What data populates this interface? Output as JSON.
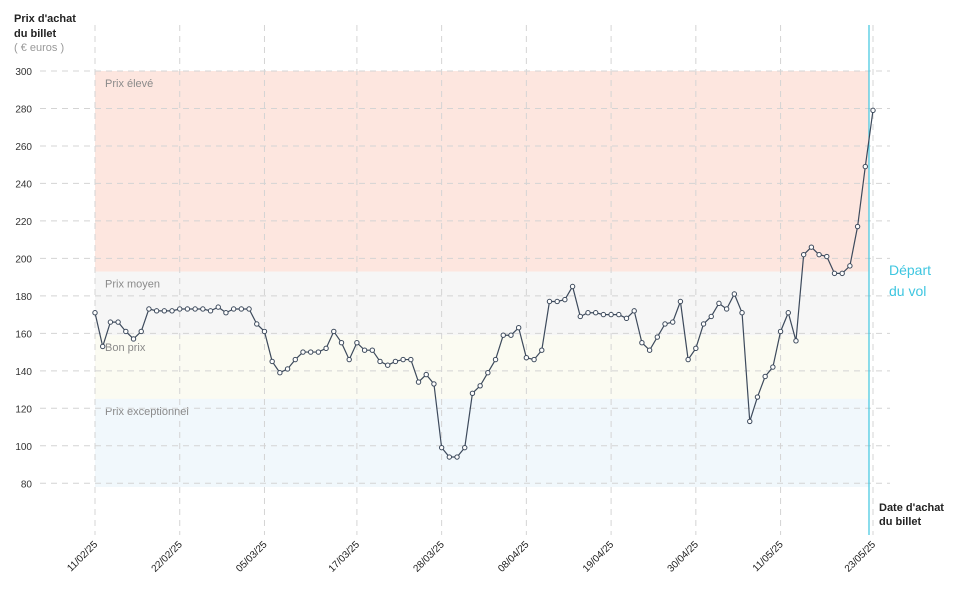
{
  "chart_data": {
    "type": "line",
    "y_title": [
      "Prix d'achat",
      "du billet"
    ],
    "y_unit": "( € euros )",
    "x_title": [
      "Date d'achat",
      "du billet"
    ],
    "annotation": [
      "Départ",
      "du vol"
    ],
    "categories": [
      "11/02/25",
      null,
      null,
      null,
      null,
      null,
      null,
      null,
      null,
      null,
      null,
      "22/02/25",
      null,
      null,
      null,
      null,
      null,
      null,
      null,
      null,
      null,
      null,
      "05/03/25",
      null,
      null,
      null,
      null,
      null,
      null,
      null,
      null,
      null,
      null,
      null,
      "17/03/25",
      null,
      null,
      null,
      null,
      null,
      null,
      null,
      null,
      null,
      null,
      "28/03/25",
      null,
      null,
      null,
      null,
      null,
      null,
      null,
      null,
      null,
      null,
      "08/04/25",
      null,
      null,
      null,
      null,
      null,
      null,
      null,
      null,
      null,
      null,
      "19/04/25",
      null,
      null,
      null,
      null,
      null,
      null,
      null,
      null,
      null,
      null,
      "30/04/25",
      null,
      null,
      null,
      null,
      null,
      null,
      null,
      null,
      null,
      null,
      "11/05/25",
      null,
      null,
      null,
      null,
      null,
      null,
      null,
      null,
      null,
      null,
      null,
      "23/05/25"
    ],
    "values": [
      171,
      153,
      166,
      166,
      161,
      157,
      161,
      173,
      172,
      172,
      172,
      173,
      173,
      173,
      173,
      172,
      174,
      171,
      173,
      173,
      173,
      165,
      161,
      145,
      139,
      141,
      146,
      150,
      150,
      150,
      152,
      161,
      155,
      146,
      155,
      151,
      151,
      145,
      143,
      145,
      146,
      146,
      134,
      138,
      133,
      99,
      94,
      94,
      99,
      128,
      132,
      139,
      146,
      159,
      159,
      163,
      147,
      146,
      151,
      177,
      177,
      178,
      185,
      169,
      171,
      171,
      170,
      170,
      170,
      168,
      172,
      155,
      151,
      158,
      165,
      166,
      177,
      146,
      152,
      165,
      169,
      176,
      173,
      181,
      171,
      113,
      126,
      137,
      142,
      161,
      171,
      156,
      202,
      206,
      202,
      201,
      192,
      192,
      196,
      217,
      249,
      279
    ],
    "color": "#3d4a5c",
    "bands": [
      {
        "name": "Prix élevé",
        "from": 193,
        "to": 300,
        "color": "#fde6df"
      },
      {
        "name": "Prix moyen",
        "from": 159,
        "to": 193,
        "color": "#f6f6f6"
      },
      {
        "name": "Bon prix",
        "from": 125,
        "to": 159,
        "color": "#fbfbf2"
      },
      {
        "name": "Prix exceptionnel",
        "from": 78,
        "to": 125,
        "color": "#f1f8fc"
      }
    ],
    "annotation_color": "#3ec6e0",
    "ylim": [
      78,
      300
    ],
    "yticks": [
      80,
      100,
      120,
      140,
      160,
      180,
      200,
      220,
      240,
      260,
      280,
      300
    ],
    "grid": true
  }
}
